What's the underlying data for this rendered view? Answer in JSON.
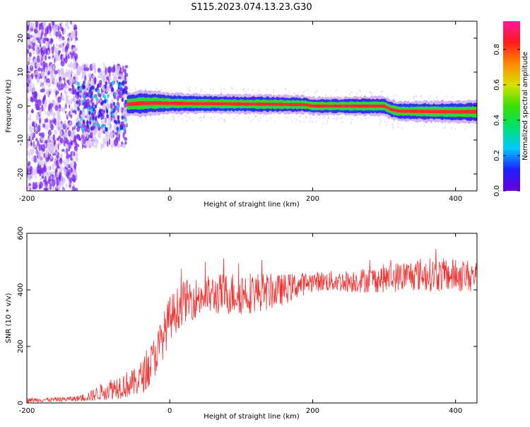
{
  "title": "S115.2023.074.13.23.G30",
  "colors": {
    "snr_line": "#ee3333",
    "ridge_core": "#ff2a2a",
    "ridge_mid": "#33dd33",
    "ridge_outer": "#2222ee",
    "scatter": "#7a2ae8",
    "scatter_light": "#d6c2f5",
    "colorbar_stops": [
      "#6a00d8",
      "#1f1fff",
      "#00c8ff",
      "#00e070",
      "#39e000",
      "#d8e000",
      "#ff8a00",
      "#ff1a1a",
      "#ff1aa0"
    ]
  },
  "chart_data": [
    {
      "type": "heatmap",
      "xlabel": "Height of straight line (km)",
      "ylabel": "Frequency (Hz)",
      "xlim": [
        -200,
        430
      ],
      "ylim": [
        -25,
        25
      ],
      "xticks": [
        -200,
        0,
        200,
        400
      ],
      "yticks": [
        -20,
        -10,
        0,
        10,
        20
      ],
      "grid": false,
      "colorbar": {
        "label": "Normalized spectral amplitude",
        "range": [
          0,
          0.96
        ],
        "ticks": [
          0.0,
          0.2,
          0.4,
          0.6,
          0.8
        ]
      },
      "ridge": {
        "x": [
          -60,
          -40,
          -20,
          0,
          50,
          100,
          150,
          190,
          200,
          240,
          270,
          300,
          310,
          320,
          360,
          400,
          430
        ],
        "freq": [
          0.5,
          0.8,
          0.9,
          0.8,
          0.7,
          0.6,
          0.5,
          0.4,
          0.0,
          0.0,
          0.0,
          0.0,
          -1.0,
          -1.5,
          -1.6,
          -1.7,
          -1.7
        ],
        "width": [
          1.5,
          1.8,
          1.6,
          1.4,
          1.3,
          1.3,
          1.3,
          1.2,
          1.2,
          1.2,
          1.3,
          1.3,
          1.3,
          1.3,
          1.4,
          1.5,
          1.6
        ]
      },
      "noise_regions": [
        {
          "x_range": [
            -200,
            -130
          ],
          "freq_range": [
            -25,
            25
          ],
          "density": "high"
        },
        {
          "x_range": [
            -130,
            -60
          ],
          "freq_range": [
            -12,
            12
          ],
          "density": "medium"
        }
      ]
    },
    {
      "type": "line",
      "xlabel": "Height of straight line (km)",
      "ylabel": "SNR (10 * v/v)",
      "xlim": [
        -200,
        430
      ],
      "ylim": [
        0,
        600
      ],
      "xticks": [
        -200,
        0,
        200,
        400
      ],
      "yticks": [
        0,
        200,
        400,
        600
      ],
      "grid": false,
      "series": [
        {
          "x": [
            -200,
            -160,
            -130,
            -110,
            -90,
            -70,
            -50,
            -40,
            -30,
            -20,
            -10,
            0,
            20,
            50,
            100,
            150,
            200,
            250,
            300,
            350,
            400,
            430
          ],
          "mean": [
            10,
            12,
            15,
            25,
            45,
            60,
            70,
            90,
            120,
            170,
            230,
            300,
            360,
            380,
            390,
            395,
            430,
            430,
            440,
            455,
            450,
            450
          ],
          "spread": [
            8,
            8,
            10,
            20,
            35,
            45,
            50,
            60,
            70,
            75,
            80,
            80,
            75,
            70,
            80,
            60,
            35,
            40,
            50,
            60,
            60,
            55
          ]
        }
      ]
    }
  ]
}
